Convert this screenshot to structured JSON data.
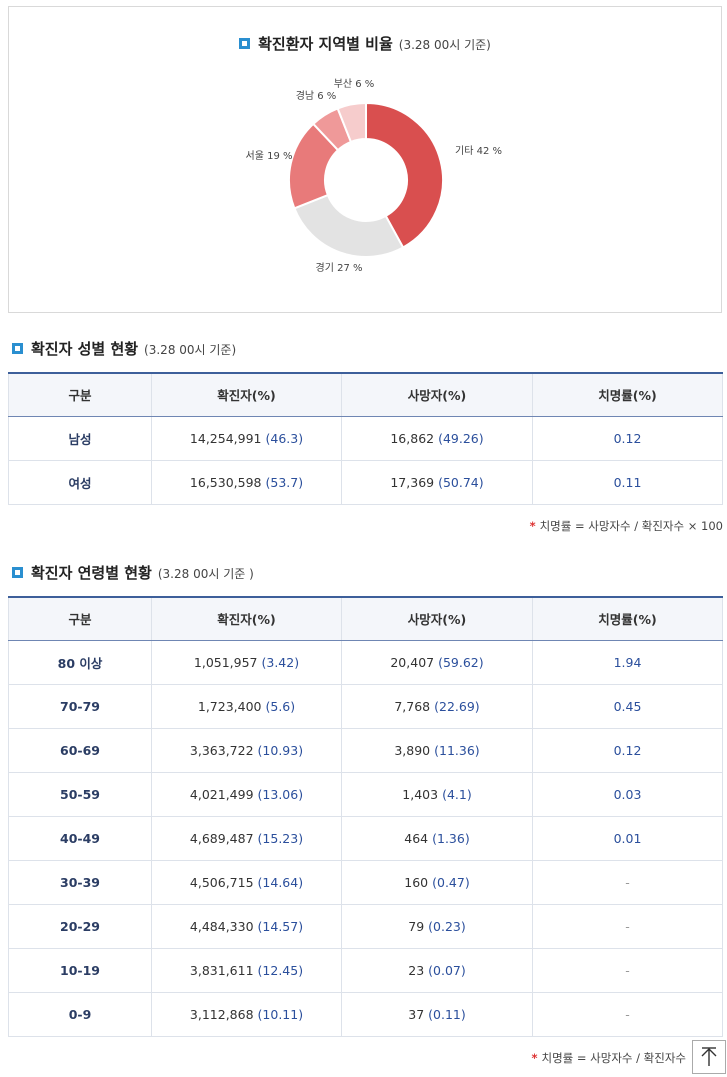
{
  "region_chart": {
    "title": "확진환자 지역별 비율",
    "subtitle": "(3.28 00시 기준)"
  },
  "chart_data": {
    "type": "pie",
    "title": "확진환자 지역별 비율",
    "subtitle": "(3.28 00시 기준)",
    "slices": [
      {
        "label": "기타",
        "value": 42,
        "display": "기타 42 %",
        "color": "#d94f4f"
      },
      {
        "label": "경기",
        "value": 27,
        "display": "경기 27 %",
        "color": "#e3e3e3"
      },
      {
        "label": "서울",
        "value": 19,
        "display": "서울 19 %",
        "color": "#e87a7a"
      },
      {
        "label": "경남",
        "value": 6,
        "display": "경남 6 %",
        "color": "#ef9999"
      },
      {
        "label": "부산",
        "value": 6,
        "display": "부산 6 %",
        "color": "#f6cccc"
      }
    ]
  },
  "gender_section": {
    "title": "확진자 성별 현황",
    "subtitle": "(3.28 00시 기준)",
    "headers": [
      "구분",
      "확진자(%)",
      "사망자(%)",
      "치명률(%)"
    ],
    "rows": [
      {
        "cat": "남성",
        "cases": "14,254,991",
        "cases_pct": "(46.3)",
        "deaths": "16,862",
        "deaths_pct": "(49.26)",
        "rate": "0.12"
      },
      {
        "cat": "여성",
        "cases": "16,530,598",
        "cases_pct": "(53.7)",
        "deaths": "17,369",
        "deaths_pct": "(50.74)",
        "rate": "0.11"
      }
    ],
    "note": "치명률 = 사망자수 / 확진자수 × 100"
  },
  "age_section": {
    "title": "확진자 연령별 현황",
    "subtitle": "(3.28 00시 기준 )",
    "headers": [
      "구분",
      "확진자(%)",
      "사망자(%)",
      "치명률(%)"
    ],
    "rows": [
      {
        "cat": "80 이상",
        "cases": "1,051,957",
        "cases_pct": "(3.42)",
        "deaths": "20,407",
        "deaths_pct": "(59.62)",
        "rate": "1.94"
      },
      {
        "cat": "70-79",
        "cases": "1,723,400",
        "cases_pct": "(5.6)",
        "deaths": "7,768",
        "deaths_pct": "(22.69)",
        "rate": "0.45"
      },
      {
        "cat": "60-69",
        "cases": "3,363,722",
        "cases_pct": "(10.93)",
        "deaths": "3,890",
        "deaths_pct": "(11.36)",
        "rate": "0.12"
      },
      {
        "cat": "50-59",
        "cases": "4,021,499",
        "cases_pct": "(13.06)",
        "deaths": "1,403",
        "deaths_pct": "(4.1)",
        "rate": "0.03"
      },
      {
        "cat": "40-49",
        "cases": "4,689,487",
        "cases_pct": "(15.23)",
        "deaths": "464",
        "deaths_pct": "(1.36)",
        "rate": "0.01"
      },
      {
        "cat": "30-39",
        "cases": "4,506,715",
        "cases_pct": "(14.64)",
        "deaths": "160",
        "deaths_pct": "(0.47)",
        "rate": "-"
      },
      {
        "cat": "20-29",
        "cases": "4,484,330",
        "cases_pct": "(14.57)",
        "deaths": "79",
        "deaths_pct": "(0.23)",
        "rate": "-"
      },
      {
        "cat": "10-19",
        "cases": "3,831,611",
        "cases_pct": "(12.45)",
        "deaths": "23",
        "deaths_pct": "(0.07)",
        "rate": "-"
      },
      {
        "cat": "0-9",
        "cases": "3,112,868",
        "cases_pct": "(10.11)",
        "deaths": "37",
        "deaths_pct": "(0.11)",
        "rate": "-"
      }
    ],
    "note": "치명률 = 사망자수 / 확진자수"
  },
  "scroll_top": {
    "icon": "arrow-up-icon"
  },
  "colors": {
    "accent": "#2a8fd0",
    "header_border": "#3d5f9a",
    "pct_text": "#2b4f9c",
    "star": "#dd3333"
  }
}
